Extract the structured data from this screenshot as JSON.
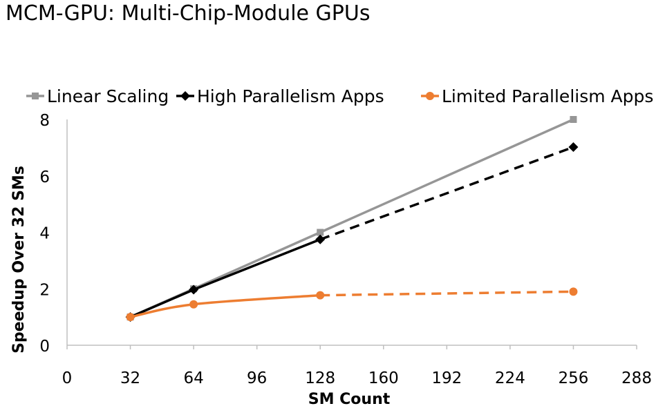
{
  "slide": {
    "title": "MCM-GPU: Multi-Chip-Module GPUs"
  },
  "chart_data": {
    "type": "line",
    "title": "",
    "xlabel": "SM Count",
    "ylabel": "Speedup Over 32 SMs",
    "xlim": [
      0,
      288
    ],
    "ylim": [
      0,
      8
    ],
    "xticks": [
      0,
      32,
      64,
      96,
      128,
      160,
      192,
      224,
      256,
      288
    ],
    "yticks": [
      0,
      2,
      4,
      6,
      8
    ],
    "grid": false,
    "legend_position": "top",
    "series": [
      {
        "name": "Linear Scaling",
        "color": "#969696",
        "marker": "square",
        "points": [
          {
            "x": 32,
            "y": 1
          },
          {
            "x": 64,
            "y": 2
          },
          {
            "x": 128,
            "y": 4
          },
          {
            "x": 256,
            "y": 8
          }
        ],
        "solid_until_x": 256
      },
      {
        "name": "High Parallelism Apps",
        "color": "#000000",
        "marker": "diamond",
        "points": [
          {
            "x": 32,
            "y": 1
          },
          {
            "x": 64,
            "y": 1.97
          },
          {
            "x": 128,
            "y": 3.75
          },
          {
            "x": 256,
            "y": 7.02
          }
        ],
        "solid_until_x": 128
      },
      {
        "name": "Limited Parallelism Apps",
        "color": "#ed7d31",
        "marker": "circle",
        "points": [
          {
            "x": 32,
            "y": 1
          },
          {
            "x": 64,
            "y": 1.45
          },
          {
            "x": 128,
            "y": 1.77
          },
          {
            "x": 256,
            "y": 1.9
          }
        ],
        "solid_until_x": 128
      }
    ]
  }
}
